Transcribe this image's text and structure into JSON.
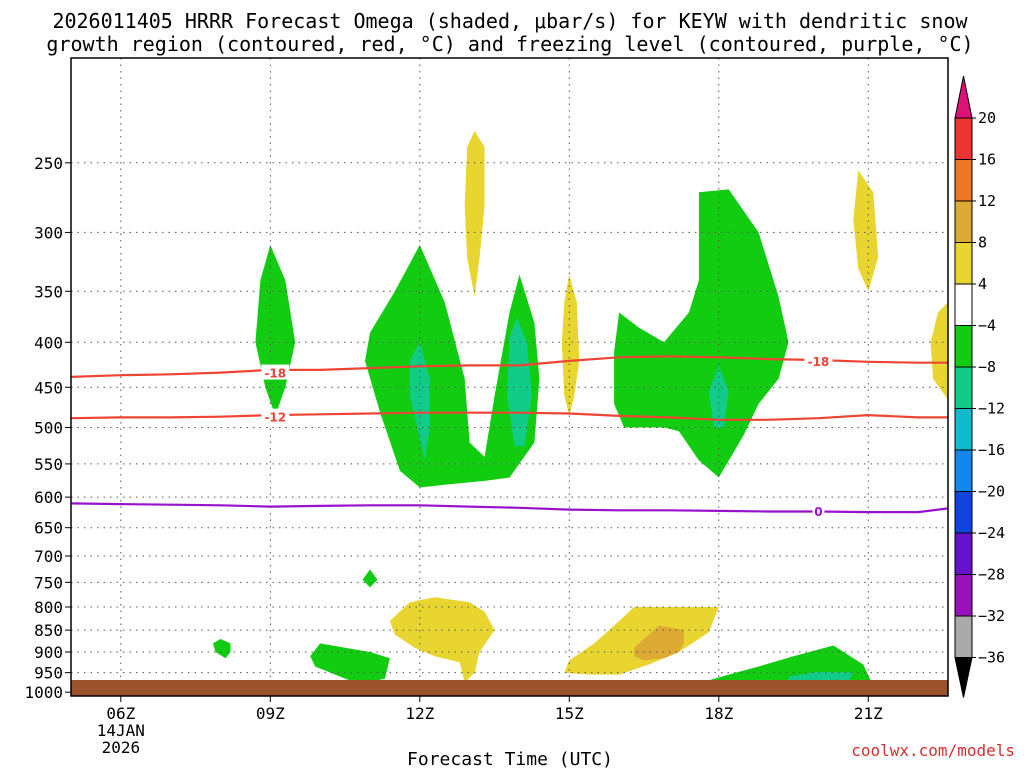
{
  "title": {
    "line1": "2026011405 HRRR Forecast Omega (shaded, μbar/s) for KEYW with dendritic snow",
    "line2": "growth region (contoured, red, °C) and freezing level (contoured, purple, °C)"
  },
  "credit": "coolwx.com/models",
  "colors": {
    "ground": "#9b532c",
    "red_contour": "#ee4433",
    "purple_contour": "#9911cc",
    "grid": "#555555"
  },
  "chart_data": {
    "type": "heatmap",
    "xlabel": "Forecast Time (UTC)",
    "x_range_hours": [
      5,
      22.6
    ],
    "y_range_mb": [
      1010,
      190
    ],
    "y_scale": "log",
    "grid": true,
    "x_ticks": [
      {
        "hour": 6,
        "label": "06Z",
        "sub1": "14JAN",
        "sub2": "2026"
      },
      {
        "hour": 9,
        "label": "09Z",
        "sub1": "",
        "sub2": ""
      },
      {
        "hour": 12,
        "label": "12Z",
        "sub1": "",
        "sub2": ""
      },
      {
        "hour": 15,
        "label": "15Z",
        "sub1": "",
        "sub2": ""
      },
      {
        "hour": 18,
        "label": "18Z",
        "sub1": "",
        "sub2": ""
      },
      {
        "hour": 21,
        "label": "21Z",
        "sub1": "",
        "sub2": ""
      }
    ],
    "y_ticks": [
      250,
      300,
      350,
      400,
      450,
      500,
      550,
      600,
      650,
      700,
      750,
      800,
      850,
      900,
      950,
      1000
    ],
    "colorbar": {
      "levels": [
        {
          "from": 20,
          "to": 24,
          "color": "#dd1177"
        },
        {
          "from": 16,
          "to": 20,
          "color": "#ee3333"
        },
        {
          "from": 12,
          "to": 16,
          "color": "#ee7722"
        },
        {
          "from": 8,
          "to": 12,
          "color": "#ddaa33"
        },
        {
          "from": 4,
          "to": 8,
          "color": "#e8d530"
        },
        {
          "from": -4,
          "to": 4,
          "color": "#ffffff"
        },
        {
          "from": -8,
          "to": -4,
          "color": "#11cc11"
        },
        {
          "from": -12,
          "to": -8,
          "color": "#11cc88"
        },
        {
          "from": -16,
          "to": -12,
          "color": "#11bbcc"
        },
        {
          "from": -20,
          "to": -16,
          "color": "#1188ee"
        },
        {
          "from": -24,
          "to": -20,
          "color": "#1144dd"
        },
        {
          "from": -28,
          "to": -24,
          "color": "#6611cc"
        },
        {
          "from": -32,
          "to": -28,
          "color": "#9911bb"
        },
        {
          "from": -36,
          "to": -32,
          "color": "#aaaaaa"
        },
        {
          "from": -40,
          "to": -36,
          "color": "#000000"
        }
      ],
      "labels": [
        "20",
        "16",
        "12",
        "8",
        "4",
        "−4",
        "−8",
        "−12",
        "−16",
        "−20",
        "−24",
        "−28",
        "−32",
        "−36"
      ]
    },
    "contours": [
      {
        "label": "-18",
        "color": "#ee4433",
        "label_points": [
          [
            9.1,
            433
          ],
          [
            20.0,
            420
          ]
        ],
        "points": [
          [
            5,
            438
          ],
          [
            6,
            436
          ],
          [
            7,
            435
          ],
          [
            8,
            433
          ],
          [
            9,
            430
          ],
          [
            10,
            430
          ],
          [
            11,
            428
          ],
          [
            12,
            426
          ],
          [
            13,
            425
          ],
          [
            14,
            425
          ],
          [
            15,
            420
          ],
          [
            16,
            416
          ],
          [
            17,
            415
          ],
          [
            18,
            416
          ],
          [
            19,
            418
          ],
          [
            20,
            419
          ],
          [
            21,
            421
          ],
          [
            22,
            422
          ],
          [
            22.6,
            422
          ]
        ]
      },
      {
        "label": "-12",
        "color": "#ee4433",
        "label_points": [
          [
            9.1,
            486
          ]
        ],
        "points": [
          [
            5,
            488
          ],
          [
            6,
            487
          ],
          [
            7,
            487
          ],
          [
            8,
            486
          ],
          [
            9,
            484
          ],
          [
            10,
            483
          ],
          [
            11,
            482
          ],
          [
            12,
            481
          ],
          [
            13,
            481
          ],
          [
            14,
            481
          ],
          [
            15,
            482
          ],
          [
            16,
            485
          ],
          [
            17,
            487
          ],
          [
            18,
            490
          ],
          [
            19,
            490
          ],
          [
            20,
            488
          ],
          [
            21,
            484
          ],
          [
            22,
            487
          ],
          [
            22.6,
            487
          ]
        ]
      },
      {
        "label": "0",
        "color": "#9911cc",
        "label_points": [
          [
            20.0,
            622
          ]
        ],
        "points": [
          [
            5,
            610
          ],
          [
            6,
            611
          ],
          [
            7,
            612
          ],
          [
            8,
            613
          ],
          [
            9,
            615
          ],
          [
            10,
            614
          ],
          [
            11,
            613
          ],
          [
            12,
            613
          ],
          [
            13,
            615
          ],
          [
            14,
            617
          ],
          [
            15,
            620
          ],
          [
            16,
            621
          ],
          [
            17,
            621
          ],
          [
            18,
            622
          ],
          [
            19,
            623
          ],
          [
            20,
            623
          ],
          [
            21,
            624
          ],
          [
            22,
            624
          ],
          [
            22.6,
            618
          ]
        ]
      }
    ],
    "shaded_regions": [
      {
        "value": -6,
        "points": [
          [
            9.0,
            310
          ],
          [
            9.3,
            340
          ],
          [
            9.5,
            400
          ],
          [
            9.3,
            450
          ],
          [
            9.1,
            485
          ],
          [
            8.9,
            450
          ],
          [
            8.7,
            400
          ],
          [
            8.8,
            340
          ]
        ]
      },
      {
        "value": -6,
        "points": [
          [
            12.0,
            310
          ],
          [
            12.5,
            360
          ],
          [
            12.9,
            440
          ],
          [
            13.0,
            520
          ],
          [
            13.3,
            540
          ],
          [
            13.5,
            460
          ],
          [
            13.8,
            370
          ],
          [
            14.0,
            335
          ],
          [
            14.3,
            380
          ],
          [
            14.4,
            440
          ],
          [
            14.3,
            520
          ],
          [
            13.8,
            570
          ],
          [
            13.3,
            575
          ],
          [
            12.6,
            580
          ],
          [
            12.0,
            585
          ],
          [
            11.6,
            560
          ],
          [
            11.2,
            480
          ],
          [
            10.9,
            420
          ],
          [
            11.0,
            390
          ],
          [
            11.5,
            350
          ]
        ]
      },
      {
        "value": -10,
        "points": [
          [
            11.8,
            420
          ],
          [
            12.0,
            400
          ],
          [
            12.2,
            440
          ],
          [
            12.2,
            500
          ],
          [
            12.1,
            545
          ],
          [
            11.95,
            500
          ],
          [
            11.8,
            460
          ]
        ]
      },
      {
        "value": -10,
        "points": [
          [
            13.8,
            395
          ],
          [
            13.95,
            375
          ],
          [
            14.15,
            400
          ],
          [
            14.25,
            460
          ],
          [
            14.1,
            525
          ],
          [
            13.9,
            525
          ],
          [
            13.75,
            460
          ]
        ]
      },
      {
        "value": -6,
        "points": [
          [
            17.6,
            270
          ],
          [
            18.2,
            268
          ],
          [
            18.8,
            300
          ],
          [
            19.2,
            355
          ],
          [
            19.4,
            400
          ],
          [
            19.2,
            440
          ],
          [
            18.8,
            470
          ],
          [
            18.5,
            510
          ],
          [
            18.0,
            570
          ],
          [
            17.6,
            545
          ],
          [
            17.2,
            505
          ],
          [
            16.9,
            500
          ],
          [
            16.7,
            500
          ],
          [
            16.1,
            500
          ],
          [
            15.9,
            470
          ],
          [
            15.9,
            410
          ],
          [
            16.0,
            370
          ],
          [
            16.4,
            385
          ],
          [
            16.9,
            400
          ],
          [
            17.4,
            370
          ],
          [
            17.6,
            340
          ],
          [
            17.6,
            300
          ]
        ]
      },
      {
        "value": -10,
        "points": [
          [
            18.0,
            425
          ],
          [
            18.2,
            455
          ],
          [
            18.1,
            500
          ],
          [
            17.9,
            500
          ],
          [
            17.8,
            455
          ]
        ]
      },
      {
        "value": 6,
        "points": [
          [
            13.1,
            230
          ],
          [
            13.3,
            240
          ],
          [
            13.3,
            280
          ],
          [
            13.2,
            320
          ],
          [
            13.1,
            355
          ],
          [
            12.95,
            320
          ],
          [
            12.9,
            280
          ],
          [
            12.95,
            240
          ]
        ]
      },
      {
        "value": 6,
        "points": [
          [
            15.0,
            335
          ],
          [
            15.15,
            360
          ],
          [
            15.2,
            420
          ],
          [
            15.1,
            460
          ],
          [
            15.0,
            485
          ],
          [
            14.9,
            460
          ],
          [
            14.85,
            400
          ],
          [
            14.9,
            360
          ]
        ]
      },
      {
        "value": 6,
        "points": [
          [
            20.8,
            255
          ],
          [
            21.1,
            270
          ],
          [
            21.2,
            320
          ],
          [
            21.0,
            350
          ],
          [
            20.8,
            330
          ],
          [
            20.7,
            290
          ]
        ]
      },
      {
        "value": 6,
        "points": [
          [
            22.6,
            360
          ],
          [
            22.6,
            465
          ],
          [
            22.3,
            440
          ],
          [
            22.25,
            400
          ],
          [
            22.4,
            370
          ]
        ]
      },
      {
        "value": -6,
        "points": [
          [
            11.0,
            725
          ],
          [
            11.15,
            745
          ],
          [
            11.0,
            760
          ],
          [
            10.85,
            745
          ]
        ]
      },
      {
        "value": -6,
        "points": [
          [
            8.0,
            870
          ],
          [
            8.2,
            880
          ],
          [
            8.2,
            900
          ],
          [
            8.1,
            915
          ],
          [
            7.9,
            900
          ],
          [
            7.85,
            880
          ]
        ]
      },
      {
        "value": 6,
        "points": [
          [
            11.8,
            790
          ],
          [
            12.3,
            780
          ],
          [
            13.0,
            790
          ],
          [
            13.3,
            810
          ],
          [
            13.5,
            850
          ],
          [
            13.2,
            900
          ],
          [
            13.1,
            950
          ],
          [
            12.9,
            975
          ],
          [
            12.8,
            925
          ],
          [
            12.3,
            910
          ],
          [
            11.9,
            890
          ],
          [
            11.5,
            860
          ],
          [
            11.4,
            830
          ]
        ]
      },
      {
        "value": -6,
        "points": [
          [
            10.0,
            880
          ],
          [
            10.5,
            890
          ],
          [
            11.0,
            900
          ],
          [
            11.4,
            915
          ],
          [
            11.3,
            965
          ],
          [
            10.8,
            980
          ],
          [
            10.4,
            960
          ],
          [
            9.9,
            935
          ],
          [
            9.8,
            910
          ]
        ]
      },
      {
        "value": 6,
        "points": [
          [
            16.3,
            800
          ],
          [
            17.0,
            800
          ],
          [
            18.0,
            800
          ],
          [
            17.8,
            855
          ],
          [
            17.2,
            900
          ],
          [
            16.6,
            930
          ],
          [
            16.0,
            955
          ],
          [
            15.4,
            955
          ],
          [
            14.9,
            950
          ],
          [
            15.0,
            920
          ],
          [
            15.5,
            880
          ],
          [
            15.9,
            840
          ]
        ]
      },
      {
        "value": 10,
        "points": [
          [
            16.3,
            890
          ],
          [
            16.8,
            840
          ],
          [
            17.3,
            850
          ],
          [
            17.3,
            880
          ],
          [
            17.2,
            900
          ],
          [
            16.9,
            915
          ],
          [
            16.5,
            920
          ],
          [
            16.3,
            910
          ]
        ]
      },
      {
        "value": -6,
        "points": [
          [
            18.2,
            955
          ],
          [
            18.8,
            935
          ],
          [
            19.5,
            910
          ],
          [
            20.3,
            885
          ],
          [
            20.9,
            930
          ],
          [
            21.1,
            985
          ],
          [
            20.4,
            990
          ],
          [
            19.5,
            985
          ],
          [
            18.8,
            985
          ],
          [
            18.0,
            985
          ],
          [
            17.5,
            980
          ]
        ]
      },
      {
        "value": -10,
        "points": [
          [
            19.4,
            960
          ],
          [
            20.0,
            948
          ],
          [
            20.7,
            950
          ],
          [
            20.6,
            975
          ],
          [
            19.9,
            985
          ],
          [
            19.4,
            978
          ]
        ]
      }
    ]
  }
}
